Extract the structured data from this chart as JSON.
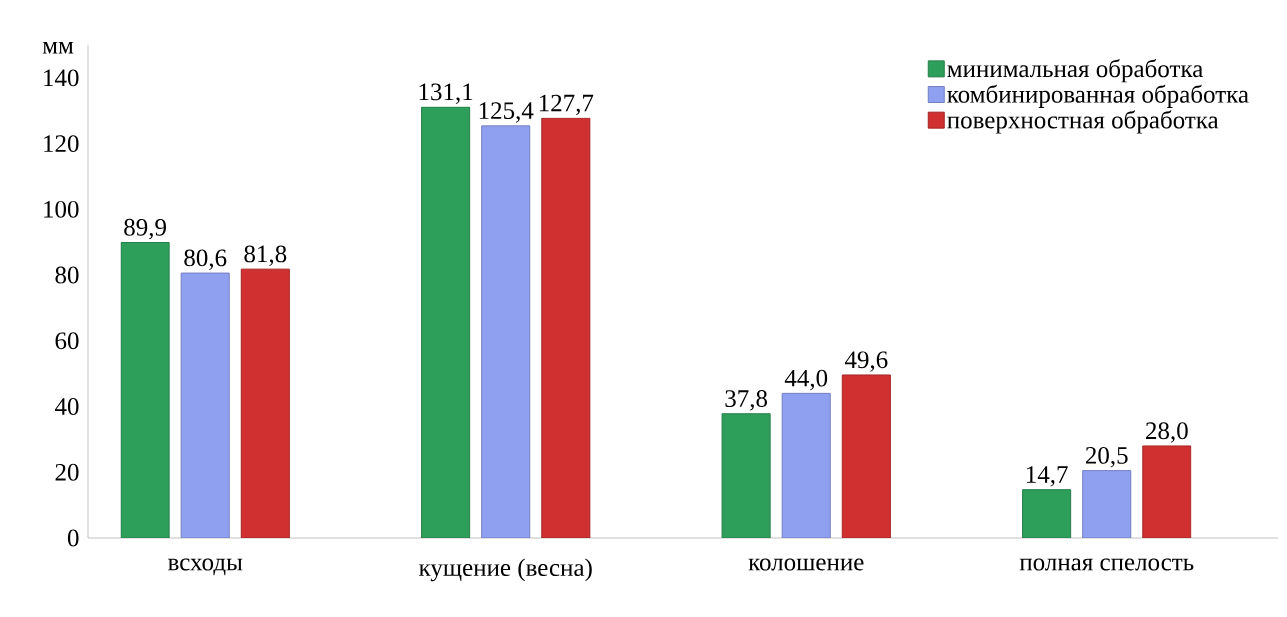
{
  "chart_data": {
    "type": "bar",
    "ylabel": "мм",
    "categories": [
      "всходы",
      "кущение (весна)",
      "колошение",
      "полная спелость"
    ],
    "series": [
      {
        "name": "минимальная обработка",
        "color": "#2e9e5b",
        "values": [
          89.9,
          131.1,
          37.8,
          14.7
        ],
        "value_labels": [
          "89,9",
          "131,1",
          "37,8",
          "14,7"
        ]
      },
      {
        "name": "комбинированная обработка",
        "color": "#8fa0f0",
        "values": [
          80.6,
          125.4,
          44.0,
          20.5
        ],
        "value_labels": [
          "80,6",
          "125,4",
          "44,0",
          "20,5"
        ]
      },
      {
        "name": "поверхностная обработка",
        "color": "#d03030",
        "values": [
          81.8,
          127.7,
          49.6,
          28.0
        ],
        "value_labels": [
          "81,8",
          "127,7",
          "49,6",
          "28,0"
        ]
      }
    ],
    "ylim": [
      0,
      150
    ],
    "yticks": [
      0,
      20,
      40,
      60,
      80,
      100,
      120,
      140
    ],
    "grid": false,
    "legend": "top right"
  }
}
